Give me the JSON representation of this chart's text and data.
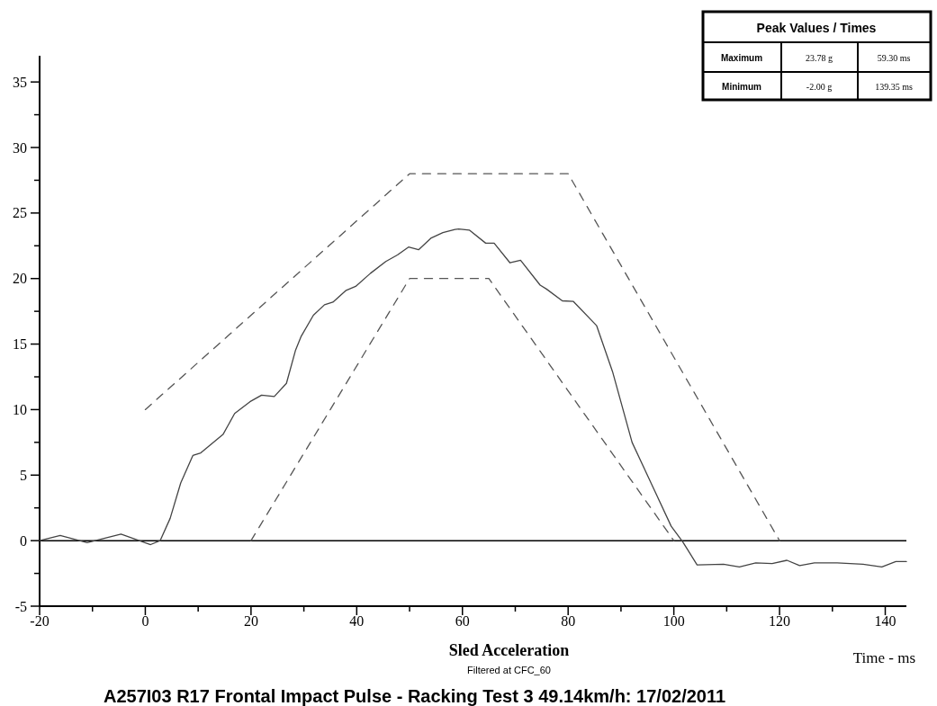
{
  "chart_data": {
    "type": "line",
    "title": "A257I03 R17 Frontal Impact Pulse - Racking Test 3 49.14km/h: 17/02/2011",
    "subtitle": "Sled Acceleration",
    "xlabel": "Time - ms",
    "annotations": [
      "Filtered at CFC_60",
      "Peak Values / Times",
      "Maximum",
      "23.78 g",
      "59.30 ms",
      "Minimum",
      "-2.00 g",
      "139.35 ms"
    ],
    "xlim": [
      -20,
      144
    ],
    "ylim": [
      -5,
      37
    ],
    "xticks": [
      -20,
      {
        "value": -10,
        "label": null
      },
      0,
      {
        "value": 10,
        "label": null
      },
      20,
      {
        "value": 30,
        "label": null
      },
      40,
      {
        "value": 50,
        "label": null
      },
      60,
      {
        "value": 70,
        "label": null
      },
      80,
      {
        "value": 90,
        "label": null
      },
      100,
      {
        "value": 110,
        "label": null
      },
      120,
      {
        "value": 130,
        "label": null
      },
      140
    ],
    "yticks": [
      -5,
      {
        "value": -2.5,
        "label": null
      },
      0,
      {
        "value": 2.5,
        "label": null
      },
      5,
      {
        "value": 7.5,
        "label": null
      },
      10,
      {
        "value": 12.5,
        "label": null
      },
      15,
      {
        "value": 17.5,
        "label": null
      },
      20,
      {
        "value": 22.5,
        "label": null
      },
      25,
      {
        "value": 27.5,
        "label": null
      },
      30,
      {
        "value": 32.5,
        "label": null
      },
      35
    ],
    "grid": false,
    "marker": "none",
    "ref_lines": [
      {
        "axis": "y",
        "value": 0,
        "color": "#000000",
        "line_style": "solid"
      }
    ],
    "series": [
      {
        "color": "#444444",
        "line_style": "solid",
        "x": [
          -20,
          -16.1,
          -11,
          -4.6,
          1,
          2.8,
          4.7,
          6.7,
          9,
          10.5,
          14.7,
          16.9,
          19.8,
          22,
          24.4,
          26.7,
          28.4,
          29.5,
          31.8,
          33.9,
          35.5,
          38,
          39.8,
          42.6,
          45.5,
          47.7,
          49.8,
          51.7,
          54.1,
          56.3,
          58.6,
          59.3,
          61.3,
          64.4,
          66,
          69,
          71,
          74.7,
          75.9,
          78.9,
          81,
          85.4,
          88.4,
          92.1,
          95.8,
          99.5,
          101.7,
          104.4,
          109.4,
          112.4,
          115.5,
          118.6,
          121.4,
          123.8,
          126.6,
          130.9,
          135.8,
          139.35,
          142,
          144
        ],
        "values": [
          0,
          0.4,
          -0.15,
          0.5,
          -0.3,
          0,
          1.7,
          4.4,
          6.5,
          6.7,
          8.1,
          9.7,
          10.6,
          11.1,
          11.0,
          12,
          14.5,
          15.6,
          17.2,
          18.0,
          18.2,
          19.1,
          19.4,
          20.4,
          21.3,
          21.8,
          22.4,
          22.2,
          23.1,
          23.5,
          23.75,
          23.78,
          23.7,
          22.7,
          22.7,
          21.2,
          21.4,
          19.5,
          19.2,
          18.3,
          18.25,
          16.4,
          12.9,
          7.5,
          4.3,
          1.1,
          -0.1,
          -1.85,
          -1.8,
          -2.0,
          -1.7,
          -1.75,
          -1.5,
          -1.9,
          -1.7,
          -1.7,
          -1.8,
          -2.0,
          -1.6,
          -1.6
        ]
      },
      {
        "color": "#555555",
        "line_style": "dashed",
        "x": [
          0,
          50,
          80,
          120
        ],
        "values": [
          10,
          28,
          28,
          0
        ]
      },
      {
        "color": "#555555",
        "line_style": "dashed",
        "x": [
          20,
          50,
          65,
          100
        ],
        "values": [
          0,
          20,
          20,
          0
        ]
      }
    ]
  }
}
